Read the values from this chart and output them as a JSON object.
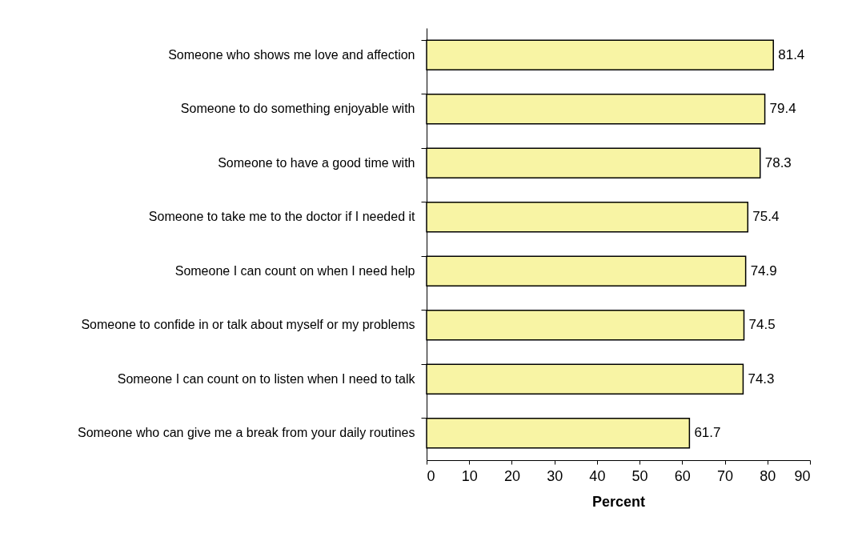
{
  "chart_data": {
    "type": "bar",
    "orientation": "horizontal",
    "xlabel": "Percent",
    "categories": [
      "Someone who shows me love and affection",
      "Someone to do something enjoyable with",
      "Someone to have a good time with",
      "Someone to take me to  the doctor if I needed it",
      "Someone I can count on when I need help",
      "Someone to confide in or talk about myself or my problems",
      "Someone I can count on to listen when I need to talk",
      "Someone who can give me a break from your daily routines"
    ],
    "values": [
      81.4,
      79.4,
      78.3,
      75.4,
      74.9,
      74.5,
      74.3,
      61.7
    ],
    "color": "#f8f4a4",
    "xlim": [
      0,
      90
    ],
    "xticks": [
      0,
      10,
      20,
      30,
      40,
      50,
      60,
      70,
      80,
      90
    ],
    "data_labels": true,
    "grid": false
  }
}
